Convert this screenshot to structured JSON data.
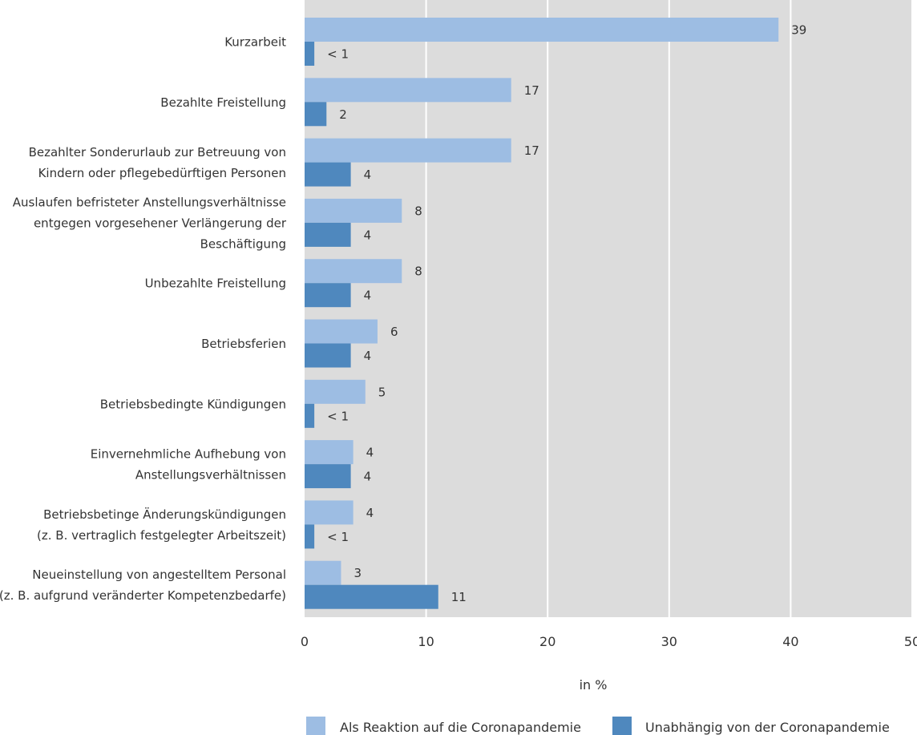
{
  "chart_data": {
    "type": "bar",
    "orientation": "horizontal",
    "categories": [
      [
        "Kurzarbeit"
      ],
      [
        "Bezahlte Freistellung"
      ],
      [
        "Bezahlter Sonderurlaub zur Betreuung von",
        "Kindern oder pflegebedürftigen Personen"
      ],
      [
        "Auslaufen befristeter Anstellungsverhältnisse",
        "entgegen vorgesehener Verlängerung der",
        "Beschäftigung"
      ],
      [
        "Unbezahlte Freistellung"
      ],
      [
        "Betriebsferien"
      ],
      [
        "Betriebsbedingte Kündigungen"
      ],
      [
        "Einvernehmliche Aufhebung von",
        "Anstellungsverhältnissen"
      ],
      [
        "Betriebsbetinge Änderungskündigungen",
        "(z. B. vertraglich festgelegter Arbeitszeit)"
      ],
      [
        "Neueinstellung von angestelltem Personal",
        "(z. B. aufgrund veränderter Kompetenzbedarfe)"
      ]
    ],
    "series": [
      {
        "name": "Als Reaktion auf die Coronapandemie",
        "values": [
          39,
          17,
          17,
          8,
          8,
          6,
          5,
          4,
          4,
          3
        ],
        "labels": [
          "39",
          "17",
          "17",
          "8",
          "8",
          "6",
          "5",
          "4",
          "4",
          "3"
        ]
      },
      {
        "name": "Unabhängig von der Coronapandemie",
        "values": [
          0.8,
          1.8,
          3.8,
          3.8,
          3.8,
          3.8,
          0.8,
          3.8,
          0.8,
          11
        ],
        "labels": [
          "< 1",
          "2",
          "4",
          "4",
          "4",
          "4",
          "< 1",
          "4",
          "< 1",
          "11"
        ]
      }
    ],
    "xlabel": "in %",
    "xlim": [
      0,
      50
    ],
    "xticks": [
      0,
      10,
      20,
      30,
      40,
      50
    ],
    "grid": "vertical",
    "legend_position": "bottom",
    "colors": {
      "plot_background": "#dcdcdc",
      "series_1": "#9dbde3",
      "series_2": "#4f88be",
      "gridline": "#ffffff",
      "text": "#333333"
    }
  }
}
